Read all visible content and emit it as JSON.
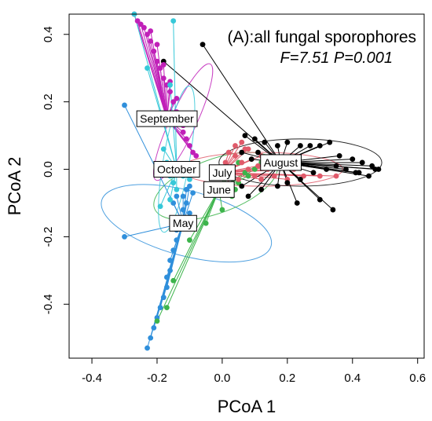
{
  "chart_data": {
    "type": "scatter",
    "title": "(A):all fungal sporophores",
    "stats": "F=7.51  P=0.001",
    "xlabel": "PCoA 1",
    "ylabel": "PCoA 2",
    "xlim": [
      -0.47,
      0.62
    ],
    "ylim": [
      -0.56,
      0.46
    ],
    "xticks": [
      "-0.4",
      "-0.2",
      "0.0",
      "0.2",
      "0.4",
      "0.6"
    ],
    "yticks": [
      "-0.4",
      "-0.2",
      "0.0",
      "0.2",
      "0.4"
    ],
    "xtick_values": [
      -0.4,
      -0.2,
      0.0,
      0.2,
      0.4,
      0.6
    ],
    "ytick_values": [
      -0.4,
      -0.2,
      0.0,
      0.2,
      0.4
    ],
    "grid": false,
    "series": [
      {
        "name": "May",
        "color": "#2F8FDB",
        "centroid": [
          -0.12,
          -0.16
        ],
        "ellipse": {
          "center": [
            -0.11,
            -0.16
          ],
          "rx": 0.1,
          "ry": 0.26,
          "angle": 75
        },
        "points": [
          [
            -0.3,
            0.19
          ],
          [
            -0.3,
            -0.2
          ],
          [
            -0.23,
            -0.53
          ],
          [
            -0.22,
            -0.5
          ],
          [
            -0.21,
            -0.47
          ],
          [
            -0.2,
            -0.44
          ],
          [
            -0.19,
            -0.41
          ],
          [
            -0.18,
            -0.38
          ],
          [
            -0.17,
            -0.35
          ],
          [
            -0.17,
            -0.32
          ],
          [
            -0.16,
            -0.3
          ],
          [
            -0.16,
            -0.27
          ],
          [
            -0.15,
            -0.24
          ],
          [
            -0.14,
            -0.21
          ],
          [
            -0.14,
            -0.18
          ],
          [
            -0.13,
            -0.15
          ],
          [
            -0.12,
            -0.12
          ],
          [
            -0.12,
            -0.08
          ],
          [
            -0.11,
            -0.06
          ],
          [
            -0.1,
            -0.05
          ],
          [
            -0.09,
            -0.07
          ],
          [
            -0.1,
            -0.13
          ],
          [
            -0.11,
            -0.1
          ],
          [
            -0.14,
            -0.08
          ],
          [
            -0.15,
            -0.1
          ]
        ]
      },
      {
        "name": "June",
        "color": "#3CB44B",
        "centroid": [
          -0.01,
          -0.06
        ],
        "ellipse": {
          "center": [
            -0.02,
            -0.05
          ],
          "rx": 0.2,
          "ry": 0.08,
          "angle": 20
        },
        "points": [
          [
            -0.2,
            -0.45
          ],
          [
            -0.17,
            -0.41
          ],
          [
            -0.15,
            -0.33
          ],
          [
            -0.1,
            -0.21
          ],
          [
            -0.05,
            -0.16
          ],
          [
            0.0,
            -0.12
          ],
          [
            0.03,
            -0.08
          ],
          [
            0.05,
            -0.04
          ],
          [
            0.08,
            -0.02
          ],
          [
            0.1,
            0.0
          ],
          [
            0.12,
            0.02
          ],
          [
            0.05,
            0.02
          ],
          [
            0.02,
            0.0
          ],
          [
            0.07,
            -0.01
          ],
          [
            0.04,
            -0.06
          ]
        ]
      },
      {
        "name": "July",
        "color": "#E05A6A",
        "centroid": [
          0.0,
          -0.01
        ],
        "ellipse": {
          "center": [
            0.12,
            0.0
          ],
          "rx": 0.25,
          "ry": 0.05,
          "angle": 0
        },
        "points": [
          [
            0.02,
            0.05
          ],
          [
            0.04,
            0.04
          ],
          [
            0.06,
            0.02
          ],
          [
            0.08,
            0.0
          ],
          [
            0.1,
            -0.02
          ],
          [
            0.12,
            -0.03
          ],
          [
            0.16,
            -0.02
          ],
          [
            0.2,
            -0.03
          ],
          [
            0.25,
            -0.02
          ],
          [
            0.3,
            -0.02
          ],
          [
            0.35,
            -0.02
          ],
          [
            0.05,
            -0.03
          ],
          [
            0.03,
            -0.05
          ],
          [
            0.07,
            0.06
          ],
          [
            0.09,
            0.03
          ],
          [
            0.11,
            0.01
          ],
          [
            0.14,
            0.0
          ],
          [
            0.18,
            0.01
          ],
          [
            0.22,
            0.0
          ],
          [
            0.01,
            0.02
          ],
          [
            0.04,
            0.07
          ],
          [
            0.06,
            0.08
          ],
          [
            0.08,
            0.06
          ],
          [
            0.12,
            0.04
          ]
        ]
      },
      {
        "name": "August",
        "color": "#000000",
        "centroid": [
          0.18,
          0.02
        ],
        "ellipse": {
          "center": [
            0.24,
            0.02
          ],
          "rx": 0.25,
          "ry": 0.07,
          "angle": 0
        },
        "points": [
          [
            -0.06,
            0.37
          ],
          [
            -0.18,
            0.32
          ],
          [
            0.07,
            0.1
          ],
          [
            0.1,
            0.09
          ],
          [
            0.13,
            0.08
          ],
          [
            0.17,
            0.07
          ],
          [
            0.2,
            0.08
          ],
          [
            0.24,
            0.07
          ],
          [
            0.27,
            0.07
          ],
          [
            0.3,
            0.07
          ],
          [
            0.33,
            0.08
          ],
          [
            0.36,
            0.04
          ],
          [
            0.4,
            0.03
          ],
          [
            0.43,
            0.02
          ],
          [
            0.46,
            0.01
          ],
          [
            0.48,
            0.0
          ],
          [
            0.45,
            -0.02
          ],
          [
            0.41,
            -0.01
          ],
          [
            0.38,
            0.0
          ],
          [
            0.35,
            0.01
          ],
          [
            0.32,
            0.0
          ],
          [
            0.28,
            -0.01
          ],
          [
            0.24,
            -0.03
          ],
          [
            0.2,
            -0.04
          ],
          [
            0.17,
            -0.05
          ],
          [
            0.23,
            -0.1
          ],
          [
            0.3,
            -0.09
          ],
          [
            0.34,
            -0.12
          ],
          [
            0.12,
            -0.06
          ],
          [
            0.08,
            -0.08
          ],
          [
            0.06,
            -0.05
          ],
          [
            0.09,
            0.03
          ],
          [
            0.06,
            0.05
          ],
          [
            0.11,
            0.05
          ],
          [
            0.15,
            0.04
          ],
          [
            0.42,
            -0.01
          ],
          [
            0.47,
            0.0
          ],
          [
            0.19,
            0.02
          ]
        ]
      },
      {
        "name": "September",
        "color": "#C020B8",
        "centroid": [
          -0.17,
          0.15
        ],
        "ellipse": {
          "center": [
            -0.12,
            0.14
          ],
          "rx": 0.04,
          "ry": 0.19,
          "angle": -25
        },
        "points": [
          [
            -0.27,
            0.46
          ],
          [
            -0.26,
            0.44
          ],
          [
            -0.25,
            0.43
          ],
          [
            -0.24,
            0.42
          ],
          [
            -0.23,
            0.4
          ],
          [
            -0.22,
            0.38
          ],
          [
            -0.21,
            0.35
          ],
          [
            -0.2,
            0.32
          ],
          [
            -0.19,
            0.3
          ],
          [
            -0.18,
            0.27
          ],
          [
            -0.17,
            0.25
          ],
          [
            -0.16,
            0.23
          ],
          [
            -0.15,
            0.2
          ],
          [
            -0.14,
            0.17
          ],
          [
            -0.13,
            0.14
          ],
          [
            -0.12,
            0.11
          ],
          [
            -0.11,
            0.09
          ],
          [
            -0.1,
            0.07
          ],
          [
            -0.09,
            0.05
          ],
          [
            -0.08,
            0.04
          ],
          [
            -0.22,
            0.41
          ],
          [
            -0.2,
            0.37
          ],
          [
            -0.18,
            0.31
          ],
          [
            -0.16,
            0.26
          ],
          [
            -0.14,
            0.21
          ],
          [
            -0.12,
            0.13
          ]
        ]
      },
      {
        "name": "October",
        "color": "#36C8D8",
        "centroid": [
          -0.14,
          0.0
        ],
        "ellipse": {
          "center": [
            -0.14,
            0.03
          ],
          "rx": 0.04,
          "ry": 0.22,
          "angle": -10
        },
        "points": [
          [
            -0.27,
            0.46
          ],
          [
            -0.15,
            0.44
          ],
          [
            -0.23,
            0.3
          ],
          [
            -0.16,
            0.25
          ],
          [
            -0.18,
            0.06
          ],
          [
            -0.17,
            0.02
          ],
          [
            -0.16,
            -0.02
          ],
          [
            -0.15,
            -0.04
          ],
          [
            -0.14,
            -0.06
          ],
          [
            -0.16,
            -0.09
          ],
          [
            -0.13,
            0.0
          ],
          [
            -0.12,
            -0.02
          ],
          [
            -0.11,
            0.01
          ],
          [
            -0.1,
            -0.03
          ],
          [
            -0.19,
            -0.11
          ]
        ]
      }
    ]
  }
}
